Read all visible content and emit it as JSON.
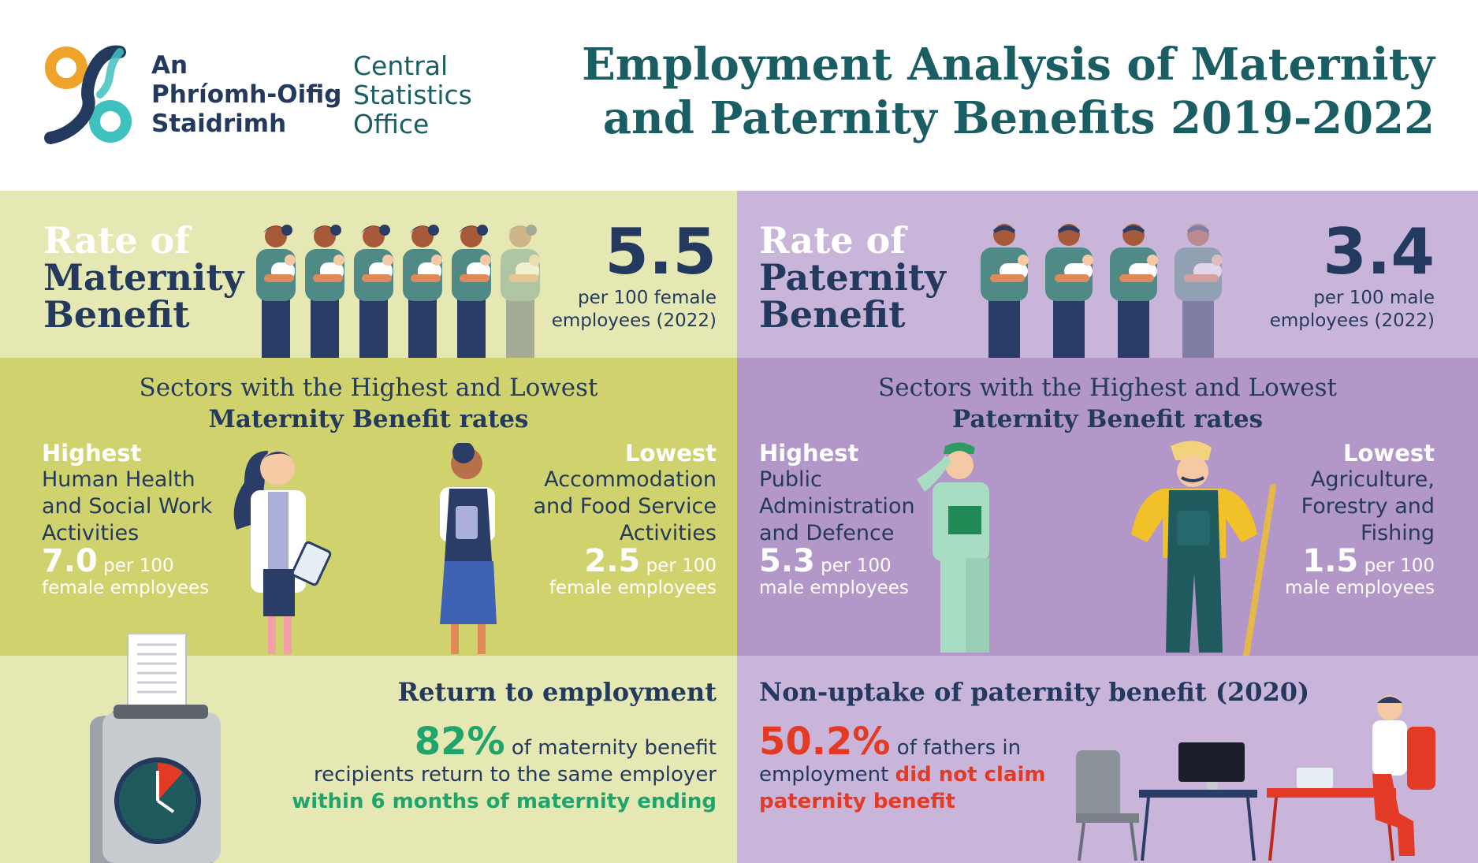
{
  "header": {
    "logo_irish": [
      "An",
      "Phríomh-Oifig",
      "Staidrimh"
    ],
    "logo_english": [
      "Central",
      "Statistics",
      "Office"
    ],
    "title_lines": [
      "Employment Analysis of Maternity",
      "and Paternity Benefits 2019-2022"
    ]
  },
  "maternity_rate": {
    "heading": [
      "Rate of",
      "Maternity",
      "Benefit"
    ],
    "value": "5.5",
    "description": [
      "per 100 female",
      "employees (2022)"
    ]
  },
  "paternity_rate": {
    "heading": [
      "Rate of",
      "Paternity",
      "Benefit"
    ],
    "value": "3.4",
    "description": [
      "per 100 male",
      "employees (2022)"
    ]
  },
  "maternity_sectors": {
    "title_line1": "Sectors with the Highest and Lowest",
    "title_line2": "Maternity Benefit rates",
    "highest": {
      "label": "Highest",
      "sector": [
        "Human Health",
        "and Social Work",
        "Activities"
      ],
      "rate": "7.0",
      "unit": "per 100",
      "unit_line2": "female employees"
    },
    "lowest": {
      "label": "Lowest",
      "sector": [
        "Accommodation",
        "and Food Service",
        "Activities"
      ],
      "rate": "2.5",
      "unit": "per 100",
      "unit_line2": "female employees"
    }
  },
  "paternity_sectors": {
    "title_line1": "Sectors with the Highest and Lowest",
    "title_line2": "Paternity Benefit rates",
    "highest": {
      "label": "Highest",
      "sector": [
        "Public",
        "Administration",
        "and Defence"
      ],
      "rate": "5.3",
      "unit": "per 100",
      "unit_line2": "male employees"
    },
    "lowest": {
      "label": "Lowest",
      "sector": [
        "Agriculture,",
        "Forestry and",
        "Fishing"
      ],
      "rate": "1.5",
      "unit": "per 100",
      "unit_line2": "male employees"
    }
  },
  "return_to_employment": {
    "title": "Return to employment",
    "percent": "82%",
    "text1": "of maternity benefit",
    "text2": "recipients return to the same employer",
    "text3": "within 6 months of maternity ending"
  },
  "non_uptake": {
    "title": "Non-uptake of paternity benefit (2020)",
    "percent": "50.2%",
    "text1": "of fathers in",
    "text2a": "employment",
    "text2b": "did not claim",
    "text3": "paternity benefit"
  },
  "colors": {
    "teal": "#1a5e63",
    "navy": "#233a5e",
    "maternity_light": "#e6e8b4",
    "maternity_dark": "#d0d36d",
    "paternity_light": "#c9b5da",
    "paternity_dark": "#b297c8",
    "green_highlight": "#1fa56b",
    "red_highlight": "#e23a24",
    "logo_orange": "#f0a32a",
    "logo_cyan": "#3fc1c0"
  }
}
